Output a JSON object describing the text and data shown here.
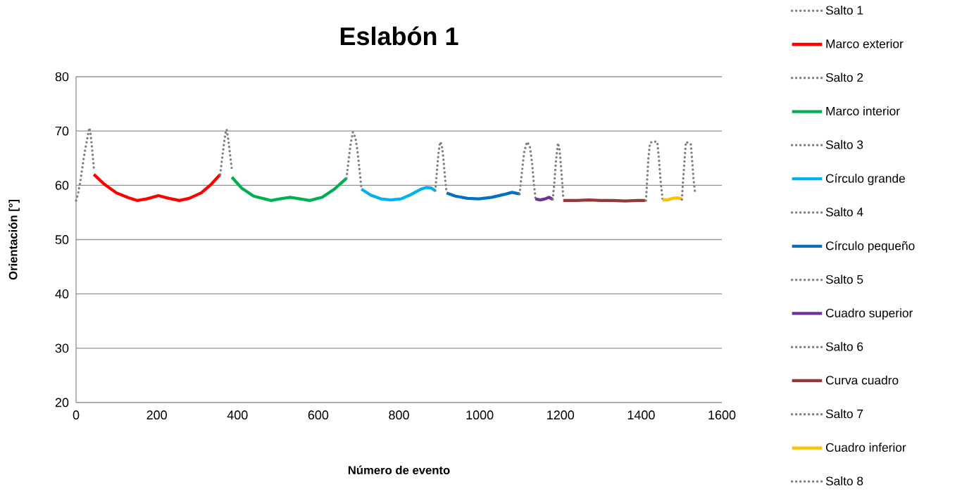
{
  "chart_data": {
    "type": "line",
    "title": "Eslabón 1",
    "xlabel": "Número de evento",
    "ylabel": "Orientación [°]",
    "xlim": [
      0,
      1600
    ],
    "xticks": [
      0,
      200,
      400,
      600,
      800,
      1000,
      1200,
      1400,
      1600
    ],
    "ylim": [
      20,
      80
    ],
    "yticks": [
      20,
      30,
      40,
      50,
      60,
      70,
      80
    ],
    "grid": "y",
    "legend": "right",
    "marker": "none",
    "series": [
      {
        "name": "Salto 1",
        "color": "#808080",
        "line_style": "dotted",
        "x": [
          0,
          5,
          10,
          15,
          20,
          25,
          30,
          33,
          36,
          40,
          44
        ],
        "values": [
          57.2,
          58.5,
          60.5,
          63,
          65.5,
          67.5,
          69.5,
          70.6,
          69.5,
          66.5,
          63.2
        ]
      },
      {
        "name": "Marco exterior",
        "color": "#ff0000",
        "line_style": "solid",
        "x": [
          44,
          70,
          100,
          130,
          152,
          175,
          204,
          230,
          256,
          280,
          310,
          335,
          357
        ],
        "values": [
          62.0,
          60.2,
          58.6,
          57.7,
          57.2,
          57.5,
          58.1,
          57.6,
          57.2,
          57.6,
          58.6,
          60.2,
          62.0
        ]
      },
      {
        "name": "Salto 2",
        "color": "#808080",
        "line_style": "dotted",
        "x": [
          357,
          362,
          367,
          370,
          373,
          377,
          381,
          386
        ],
        "values": [
          62,
          65,
          68,
          69.5,
          70.3,
          68.5,
          66,
          62.9
        ]
      },
      {
        "name": "Marco interior",
        "color": "#00b050",
        "line_style": "solid",
        "x": [
          386,
          410,
          440,
          483,
          505,
          530,
          555,
          579,
          610,
          640,
          670
        ],
        "values": [
          61.5,
          59.5,
          58.0,
          57.2,
          57.5,
          57.8,
          57.5,
          57.2,
          57.8,
          59.3,
          61.3
        ]
      },
      {
        "name": "Salto 3",
        "color": "#808080",
        "line_style": "dotted",
        "x": [
          670,
          675,
          680,
          686,
          692,
          697,
          702,
          707
        ],
        "values": [
          61.3,
          64.5,
          67.5,
          69.8,
          68.8,
          66.5,
          63,
          59.5
        ]
      },
      {
        "name": "Círculo grande",
        "color": "#00b0f0",
        "line_style": "solid",
        "x": [
          707,
          730,
          755,
          780,
          805,
          830,
          855,
          867,
          880,
          890
        ],
        "values": [
          59.3,
          58.2,
          57.5,
          57.3,
          57.5,
          58.3,
          59.3,
          59.6,
          59.5,
          59.0
        ]
      },
      {
        "name": "Salto 4",
        "color": "#808080",
        "line_style": "dotted",
        "x": [
          890,
          894,
          898,
          902,
          906,
          910,
          914,
          918
        ],
        "values": [
          59,
          62.5,
          66,
          68,
          67.5,
          65,
          61.5,
          58.6
        ]
      },
      {
        "name": "Círculo pequeño",
        "color": "#0070c0",
        "line_style": "solid",
        "x": [
          918,
          940,
          970,
          998,
          1030,
          1060,
          1080,
          1099
        ],
        "values": [
          58.6,
          58.0,
          57.6,
          57.5,
          57.8,
          58.3,
          58.7,
          58.4
        ]
      },
      {
        "name": "Salto 5",
        "color": "#808080",
        "line_style": "dotted",
        "x": [
          1099,
          1104,
          1110,
          1117,
          1124,
          1130,
          1134,
          1138
        ],
        "values": [
          58.4,
          62,
          66,
          68,
          67.3,
          64,
          60.5,
          57.7
        ]
      },
      {
        "name": "Cuadro superior",
        "color": "#7030a0",
        "line_style": "solid",
        "x": [
          1138,
          1150,
          1162,
          1172,
          1181
        ],
        "values": [
          57.5,
          57.3,
          57.5,
          57.8,
          57.4
        ]
      },
      {
        "name": "Salto 6",
        "color": "#808080",
        "line_style": "dotted",
        "x": [
          1181,
          1185,
          1189,
          1194,
          1198,
          1202,
          1205,
          1207
        ],
        "values": [
          57.4,
          60.5,
          64.5,
          67.8,
          66.5,
          63,
          60,
          57.7
        ]
      },
      {
        "name": "Curva cuadro",
        "color": "#953735",
        "line_style": "solid",
        "x": [
          1207,
          1240,
          1270,
          1300,
          1330,
          1360,
          1390,
          1410
        ],
        "values": [
          57.2,
          57.2,
          57.3,
          57.2,
          57.2,
          57.1,
          57.2,
          57.2
        ]
      },
      {
        "name": "Salto 7",
        "color": "#808080",
        "line_style": "dotted",
        "x": [
          1412,
          1415,
          1418,
          1422,
          1431,
          1440,
          1444,
          1448,
          1453
        ],
        "values": [
          57.2,
          61,
          65,
          67.8,
          68.1,
          68.0,
          65,
          61,
          57.5
        ]
      },
      {
        "name": "Cuadro inferior",
        "color": "#ffc000",
        "line_style": "solid",
        "x": [
          1453,
          1465,
          1478,
          1490,
          1501
        ],
        "values": [
          57.3,
          57.3,
          57.6,
          57.7,
          57.5
        ]
      },
      {
        "name": "Salto 8",
        "color": "#808080",
        "line_style": "dotted",
        "x": [
          1501,
          1504,
          1508,
          1511,
          1517,
          1523,
          1527,
          1530,
          1534
        ],
        "values": [
          57.4,
          61,
          65,
          68.0,
          67.8,
          67.6,
          64,
          61,
          58.4
        ]
      }
    ]
  }
}
